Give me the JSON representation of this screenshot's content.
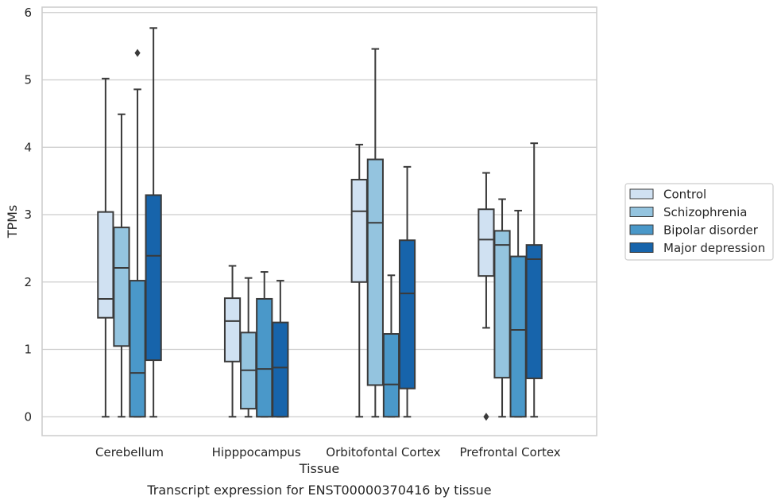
{
  "chart_data": {
    "type": "box",
    "xlabel": "Tissue",
    "ylabel": "TPMs",
    "caption": "Transcript expression for ENST00000370416 by tissue",
    "ylim": [
      -0.28,
      6.08
    ],
    "yticks": [
      0,
      1,
      2,
      3,
      4,
      5,
      6
    ],
    "grid": true,
    "legend_position": "right",
    "categories": [
      "Cerebellum",
      "Hipppocampus",
      "Orbitofontal Cortex",
      "Prefrontal Cortex"
    ],
    "series": [
      {
        "name": "Control",
        "color": "#d0e1f2",
        "boxes": [
          {
            "whisker_low": 0.0,
            "q1": 1.47,
            "median": 1.75,
            "q3": 3.04,
            "whisker_high": 5.02,
            "outliers": []
          },
          {
            "whisker_low": 0.0,
            "q1": 0.82,
            "median": 1.42,
            "q3": 1.76,
            "whisker_high": 2.24,
            "outliers": []
          },
          {
            "whisker_low": 0.0,
            "q1": 2.0,
            "median": 3.05,
            "q3": 3.52,
            "whisker_high": 4.04,
            "outliers": []
          },
          {
            "whisker_low": 1.32,
            "q1": 2.09,
            "median": 2.63,
            "q3": 3.08,
            "whisker_high": 3.62,
            "outliers": [
              0.0
            ]
          }
        ]
      },
      {
        "name": "Schizophrenia",
        "color": "#94c4df",
        "boxes": [
          {
            "whisker_low": 0.0,
            "q1": 1.05,
            "median": 2.21,
            "q3": 2.81,
            "whisker_high": 4.49,
            "outliers": []
          },
          {
            "whisker_low": 0.0,
            "q1": 0.12,
            "median": 0.69,
            "q3": 1.25,
            "whisker_high": 2.06,
            "outliers": []
          },
          {
            "whisker_low": 0.0,
            "q1": 0.47,
            "median": 2.88,
            "q3": 3.82,
            "whisker_high": 5.46,
            "outliers": []
          },
          {
            "whisker_low": 0.0,
            "q1": 0.58,
            "median": 2.55,
            "q3": 2.76,
            "whisker_high": 3.23,
            "outliers": []
          }
        ]
      },
      {
        "name": "Bipolar disorder",
        "color": "#4a98c9",
        "boxes": [
          {
            "whisker_low": 0.0,
            "q1": 0.0,
            "median": 0.65,
            "q3": 2.02,
            "whisker_high": 4.86,
            "outliers": [
              5.4
            ]
          },
          {
            "whisker_low": 0.0,
            "q1": 0.0,
            "median": 0.71,
            "q3": 1.75,
            "whisker_high": 2.15,
            "outliers": []
          },
          {
            "whisker_low": 0.0,
            "q1": 0.0,
            "median": 0.48,
            "q3": 1.23,
            "whisker_high": 2.1,
            "outliers": []
          },
          {
            "whisker_low": 0.0,
            "q1": 0.0,
            "median": 1.29,
            "q3": 2.38,
            "whisker_high": 3.06,
            "outliers": []
          }
        ]
      },
      {
        "name": "Major depression",
        "color": "#1764ab",
        "boxes": [
          {
            "whisker_low": 0.0,
            "q1": 0.84,
            "median": 2.39,
            "q3": 3.29,
            "whisker_high": 5.77,
            "outliers": []
          },
          {
            "whisker_low": 0.0,
            "q1": 0.0,
            "median": 0.73,
            "q3": 1.4,
            "whisker_high": 2.02,
            "outliers": []
          },
          {
            "whisker_low": 0.0,
            "q1": 0.42,
            "median": 1.83,
            "q3": 2.62,
            "whisker_high": 3.71,
            "outliers": []
          },
          {
            "whisker_low": 0.0,
            "q1": 0.57,
            "median": 2.34,
            "q3": 2.55,
            "whisker_high": 4.06,
            "outliers": []
          }
        ]
      }
    ]
  }
}
